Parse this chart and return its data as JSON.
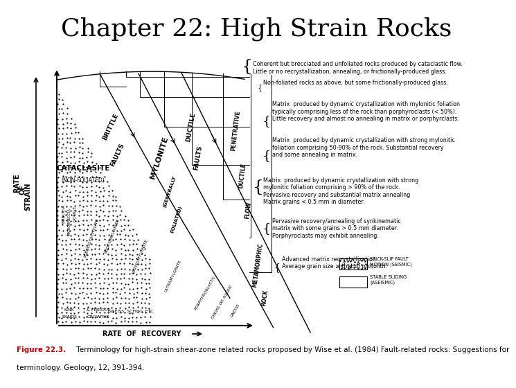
{
  "title": "Chapter 22: High Strain Rocks",
  "title_fontsize": 28,
  "title_font": "serif",
  "caption_bold": "Figure 22.3.",
  "caption_italic": " Terminology for high-strain shear-zone related rocks proposed by Wise ",
  "caption_et": "et al.",
  "caption_rest": " (1984) Fault-related rocks: Suggestions for\nterminology. ",
  "caption_geology": "Geology",
  "caption_end": ", 12, 391-394.",
  "bg_color": "#ffffff"
}
